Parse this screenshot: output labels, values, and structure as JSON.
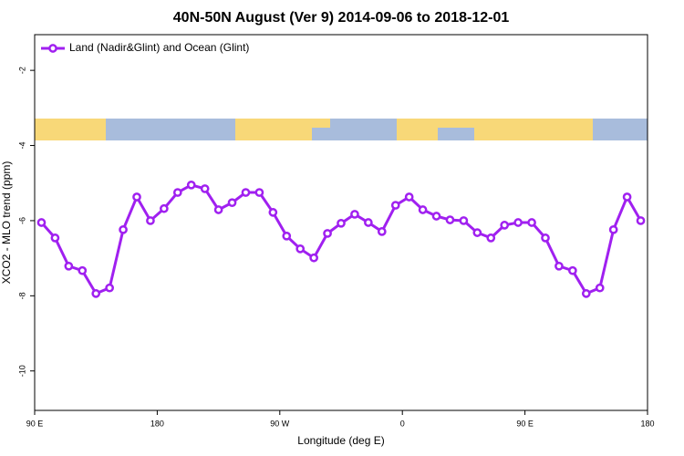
{
  "chart_data": {
    "type": "line",
    "title": "40N-50N August (Ver 9)   2014-09-06 to 2018-12-01",
    "x_label": "Longitude (deg E)",
    "y_label": "XCO2 - MLO trend (ppm)",
    "xlim": [
      90,
      540
    ],
    "xticks": [
      {
        "value": 90,
        "label": "90 E"
      },
      180,
      {
        "value": 270,
        "label": "90 W"
      },
      {
        "value": 360,
        "label": "0"
      },
      {
        "value": 450,
        "label": "90 E"
      },
      {
        "value": 540,
        "label": "180"
      }
    ],
    "ylim": [
      -11.05,
      -1.05
    ],
    "yticks": [
      -10,
      -8,
      -6,
      -4,
      -2
    ],
    "legend": "upper left",
    "series": [
      {
        "name": "Land (Nadir&Glint) and Ocean (Glint)",
        "color": "#a020f0",
        "x": [
          95,
          105,
          115,
          125,
          135,
          145,
          155,
          165,
          175,
          185,
          195,
          205,
          215,
          225,
          235,
          245,
          255,
          265,
          275,
          285,
          295,
          305,
          315,
          325,
          335,
          345,
          355,
          365,
          375,
          385,
          395,
          405,
          415,
          425,
          435,
          445,
          455,
          465,
          475,
          485,
          495,
          505,
          515,
          525,
          535
        ],
        "values": [
          -6.05,
          -6.46,
          -7.21,
          -7.33,
          -7.94,
          -7.79,
          -6.24,
          -5.37,
          -6.0,
          -5.68,
          -5.25,
          -5.05,
          -5.15,
          -5.71,
          -5.52,
          -5.25,
          -5.25,
          -5.78,
          -6.41,
          -6.75,
          -6.99,
          -6.34,
          -6.07,
          -5.83,
          -6.05,
          -6.29,
          -5.59,
          -5.37,
          -5.71,
          -5.88,
          -5.98,
          -6.0,
          -6.32,
          -6.46,
          -6.12,
          -6.05,
          -6.05,
          -6.46,
          -7.21,
          -7.33,
          -7.94,
          -7.79,
          -6.24,
          -5.37,
          -6.0
        ]
      }
    ]
  }
}
